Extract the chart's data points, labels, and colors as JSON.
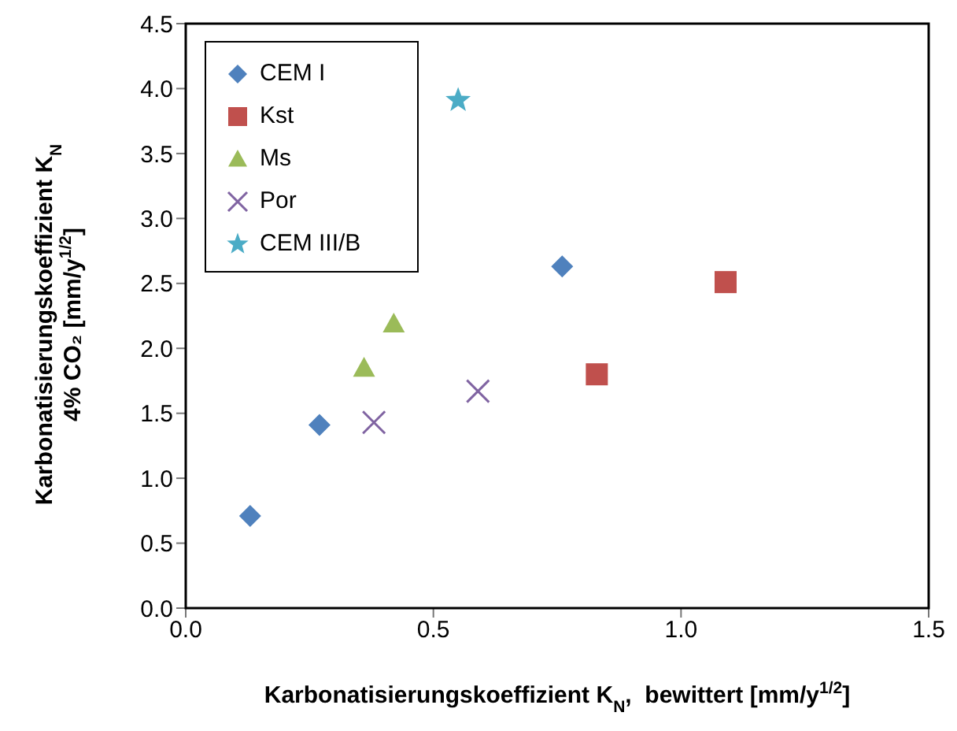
{
  "chart_data": {
    "type": "scatter",
    "xlabel": "Karbonatisierungskoeffizient K$_{N}$,  bewittert [mm/y$^{1/2}$]",
    "ylabel": "Karbonatisierungskoeffizient K$_{N}$\n4% CO₂ [mm/y$^{1/2}$]",
    "xlim": [
      0,
      1.5
    ],
    "xticks": [
      {
        "value": 0,
        "label": "0.0"
      },
      {
        "value": 0.5,
        "label": "0.5"
      },
      {
        "value": 1,
        "label": "1.0"
      },
      {
        "value": 1.5,
        "label": "1.5"
      }
    ],
    "ylim": [
      0,
      4.5
    ],
    "yticks": [
      {
        "value": 0,
        "label": "0.0"
      },
      {
        "value": 0.5,
        "label": "0.5"
      },
      {
        "value": 1,
        "label": "1.0"
      },
      {
        "value": 1.5,
        "label": "1.5"
      },
      {
        "value": 2,
        "label": "2.0"
      },
      {
        "value": 2.5,
        "label": "2.5"
      },
      {
        "value": 3,
        "label": "3.0"
      },
      {
        "value": 3.5,
        "label": "3.5"
      },
      {
        "value": 4,
        "label": "4.0"
      },
      {
        "value": 4.5,
        "label": "4.5"
      }
    ],
    "grid": false,
    "legend": "top left",
    "series": [
      {
        "name": "CEM I",
        "color": "#4f81bd",
        "marker": "diamond",
        "x": [
          0.13,
          0.27,
          0.76
        ],
        "values": [
          0.71,
          1.41,
          2.63
        ]
      },
      {
        "name": "Kst",
        "color": "#c0504d",
        "marker": "square",
        "x": [
          0.83,
          1.09
        ],
        "values": [
          1.8,
          2.51
        ]
      },
      {
        "name": "Ms",
        "color": "#9bbb59",
        "marker": "triangle",
        "x": [
          0.36,
          0.42
        ],
        "values": [
          1.85,
          2.19
        ]
      },
      {
        "name": "Por",
        "color": "#8064a2",
        "marker": "cross",
        "x": [
          0.38,
          0.59
        ],
        "values": [
          1.43,
          1.67
        ]
      },
      {
        "name": "CEM III/B",
        "color": "#4bacc6",
        "marker": "star",
        "x": [
          0.55
        ],
        "values": [
          3.91
        ]
      }
    ]
  }
}
